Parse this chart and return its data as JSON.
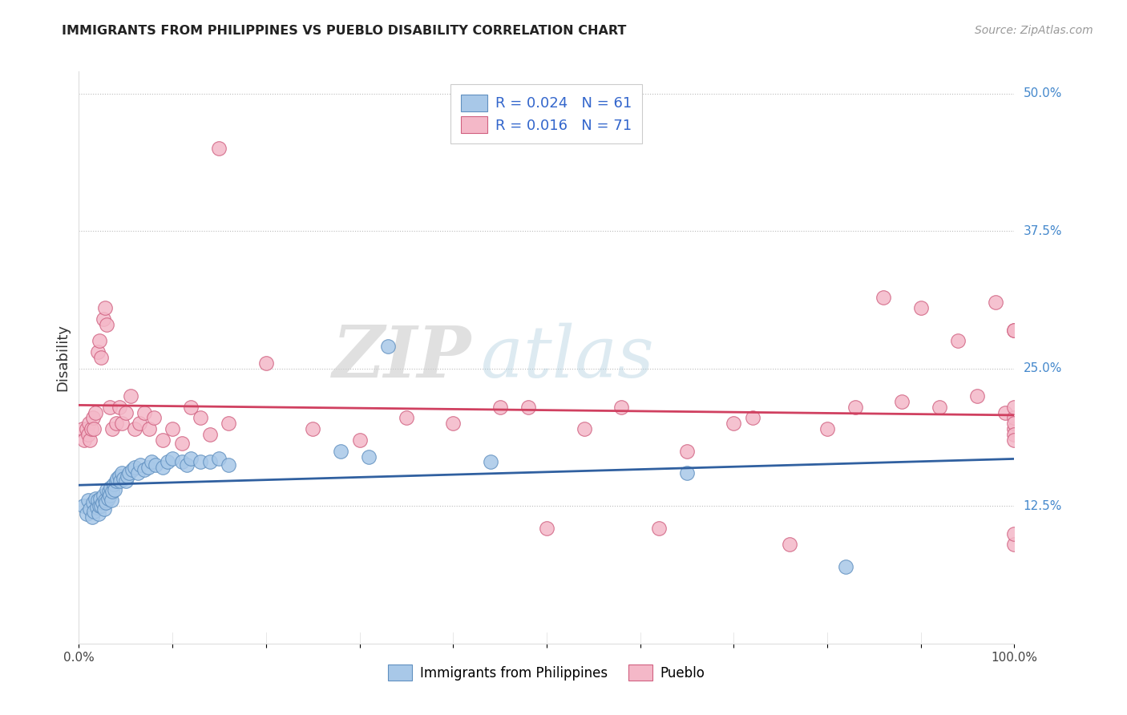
{
  "title": "IMMIGRANTS FROM PHILIPPINES VS PUEBLO DISABILITY CORRELATION CHART",
  "source": "Source: ZipAtlas.com",
  "ylabel": "Disability",
  "xlim": [
    0,
    1.0
  ],
  "ylim": [
    0.0,
    0.52
  ],
  "ytick_positions": [
    0.125,
    0.25,
    0.375,
    0.5
  ],
  "ytick_labels": [
    "12.5%",
    "25.0%",
    "37.5%",
    "50.0%"
  ],
  "blue_color": "#a8c8e8",
  "pink_color": "#f4b8c8",
  "blue_edge_color": "#6090c0",
  "pink_edge_color": "#d06080",
  "blue_line_color": "#3060a0",
  "pink_line_color": "#d04060",
  "watermark_zip": "ZIP",
  "watermark_atlas": "atlas",
  "blue_x": [
    0.005,
    0.008,
    0.01,
    0.012,
    0.014,
    0.015,
    0.016,
    0.018,
    0.019,
    0.02,
    0.021,
    0.022,
    0.023,
    0.024,
    0.025,
    0.026,
    0.027,
    0.028,
    0.029,
    0.03,
    0.031,
    0.032,
    0.033,
    0.034,
    0.035,
    0.036,
    0.037,
    0.038,
    0.04,
    0.041,
    0.043,
    0.044,
    0.046,
    0.048,
    0.05,
    0.052,
    0.054,
    0.057,
    0.06,
    0.063,
    0.066,
    0.07,
    0.074,
    0.078,
    0.082,
    0.09,
    0.095,
    0.1,
    0.11,
    0.115,
    0.12,
    0.13,
    0.14,
    0.15,
    0.16,
    0.28,
    0.31,
    0.33,
    0.44,
    0.65,
    0.82
  ],
  "blue_y": [
    0.125,
    0.118,
    0.13,
    0.122,
    0.115,
    0.128,
    0.12,
    0.132,
    0.124,
    0.13,
    0.118,
    0.125,
    0.132,
    0.125,
    0.128,
    0.135,
    0.122,
    0.13,
    0.128,
    0.14,
    0.132,
    0.138,
    0.135,
    0.142,
    0.13,
    0.138,
    0.145,
    0.14,
    0.148,
    0.15,
    0.152,
    0.148,
    0.155,
    0.15,
    0.148,
    0.152,
    0.155,
    0.158,
    0.16,
    0.155,
    0.162,
    0.158,
    0.16,
    0.165,
    0.162,
    0.16,
    0.165,
    0.168,
    0.165,
    0.162,
    0.168,
    0.165,
    0.165,
    0.168,
    0.162,
    0.175,
    0.17,
    0.27,
    0.165,
    0.155,
    0.07
  ],
  "pink_x": [
    0.004,
    0.006,
    0.008,
    0.01,
    0.011,
    0.012,
    0.013,
    0.015,
    0.016,
    0.018,
    0.02,
    0.022,
    0.024,
    0.026,
    0.028,
    0.03,
    0.033,
    0.036,
    0.04,
    0.043,
    0.046,
    0.05,
    0.055,
    0.06,
    0.065,
    0.07,
    0.075,
    0.08,
    0.09,
    0.1,
    0.11,
    0.12,
    0.13,
    0.14,
    0.15,
    0.16,
    0.2,
    0.25,
    0.3,
    0.35,
    0.4,
    0.45,
    0.48,
    0.5,
    0.54,
    0.58,
    0.62,
    0.65,
    0.7,
    0.72,
    0.76,
    0.8,
    0.83,
    0.86,
    0.88,
    0.9,
    0.92,
    0.94,
    0.96,
    0.98,
    0.99,
    1.0,
    1.0,
    1.0,
    1.0,
    1.0,
    1.0,
    1.0,
    1.0,
    1.0,
    1.0
  ],
  "pink_y": [
    0.195,
    0.185,
    0.195,
    0.19,
    0.2,
    0.185,
    0.195,
    0.205,
    0.195,
    0.21,
    0.265,
    0.275,
    0.26,
    0.295,
    0.305,
    0.29,
    0.215,
    0.195,
    0.2,
    0.215,
    0.2,
    0.21,
    0.225,
    0.195,
    0.2,
    0.21,
    0.195,
    0.205,
    0.185,
    0.195,
    0.182,
    0.215,
    0.205,
    0.19,
    0.45,
    0.2,
    0.255,
    0.195,
    0.185,
    0.205,
    0.2,
    0.215,
    0.215,
    0.105,
    0.195,
    0.215,
    0.105,
    0.175,
    0.2,
    0.205,
    0.09,
    0.195,
    0.215,
    0.315,
    0.22,
    0.305,
    0.215,
    0.275,
    0.225,
    0.31,
    0.21,
    0.195,
    0.205,
    0.285,
    0.215,
    0.2,
    0.19,
    0.09,
    0.1,
    0.185,
    0.285
  ]
}
